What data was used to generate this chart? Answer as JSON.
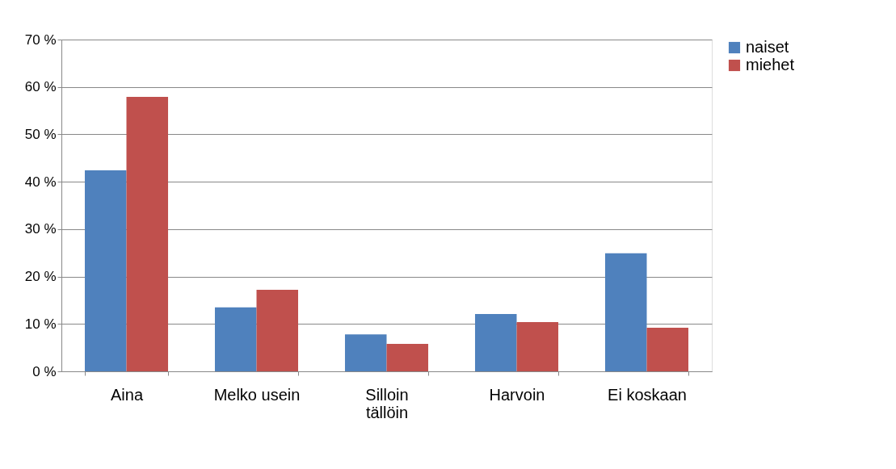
{
  "chart_data": {
    "type": "bar",
    "categories": [
      "Aina",
      "Melko usein",
      "Silloin tällöin",
      "Harvoin",
      "Ei koskaan"
    ],
    "series": [
      {
        "name": "naiset",
        "color": "#4f81bd",
        "values": [
          42.4,
          13.5,
          7.8,
          12.1,
          24.9
        ]
      },
      {
        "name": "miehet",
        "color": "#c0504d",
        "values": [
          57.9,
          17.2,
          5.8,
          10.4,
          9.2
        ]
      }
    ],
    "ylim": [
      0,
      70
    ],
    "yticks": [
      {
        "value": 0,
        "label": "0 %"
      },
      {
        "value": 10,
        "label": "10 %"
      },
      {
        "value": 20,
        "label": "20 %"
      },
      {
        "value": 30,
        "label": "30 %"
      },
      {
        "value": 40,
        "label": "40 %"
      },
      {
        "value": 50,
        "label": "50 %"
      },
      {
        "value": 60,
        "label": "60 %"
      },
      {
        "value": 70,
        "label": "70 %"
      }
    ],
    "grid": "y",
    "legend": "right"
  }
}
